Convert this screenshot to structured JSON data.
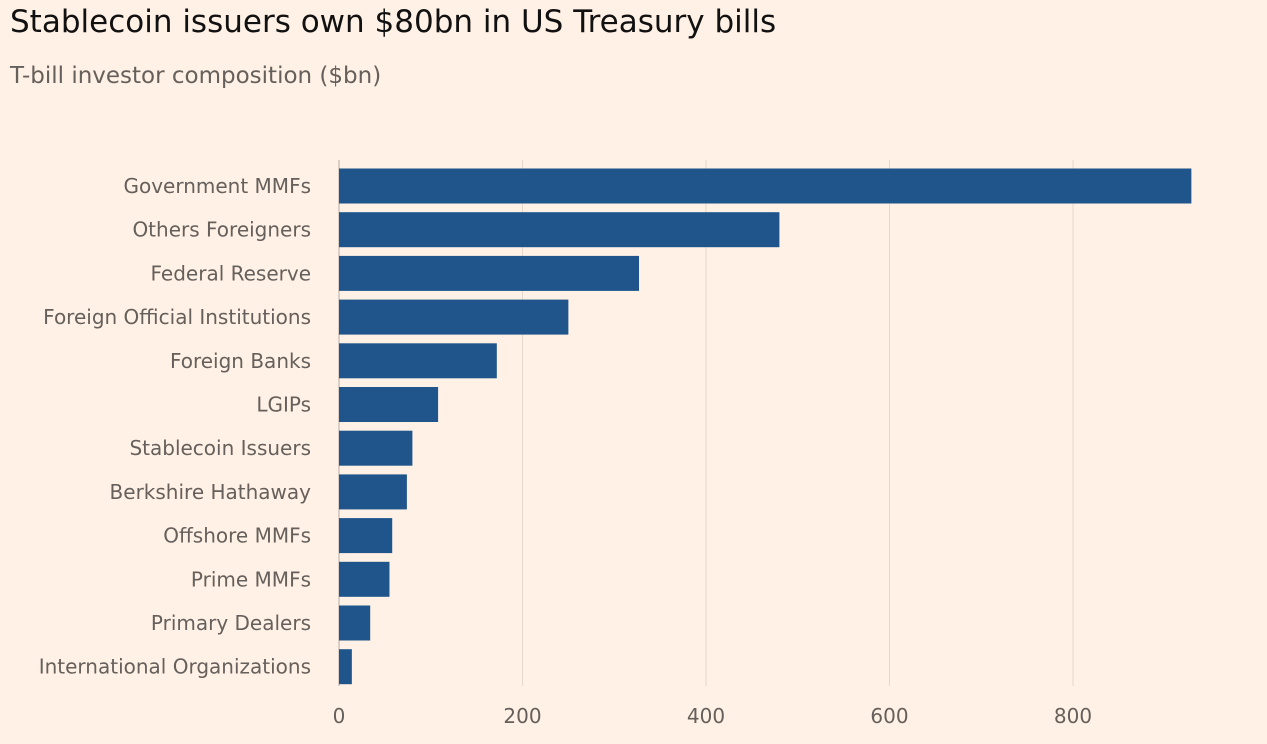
{
  "title": "Stablecoin issuers own $80bn in US Treasury bills",
  "subtitle": "T-bill investor composition ($bn)",
  "colors": {
    "background": "#fff1e5",
    "bar": "#1f558a",
    "grid": "#e5d8cd",
    "text": "#66605c"
  },
  "chart_data": {
    "type": "bar",
    "orientation": "horizontal",
    "title": "Stablecoin issuers own $80bn in US Treasury bills",
    "subtitle": "T-bill investor composition ($bn)",
    "categories": [
      "Government MMFs",
      "Others Foreigners",
      "Federal Reserve",
      "Foreign Official Institutions",
      "Foreign Banks",
      "LGIPs",
      "Stablecoin Issuers",
      "Berkshire Hathaway",
      "Offshore MMFs",
      "Prime MMFs",
      "Primary Dealers",
      "International Organizations"
    ],
    "values": [
      929,
      480,
      327,
      250,
      172,
      108,
      80,
      74,
      58,
      55,
      34,
      14
    ],
    "xlim": [
      0,
      1000
    ],
    "xticks": [
      0,
      200,
      400,
      600,
      800
    ],
    "grid": true,
    "legend": "none"
  }
}
